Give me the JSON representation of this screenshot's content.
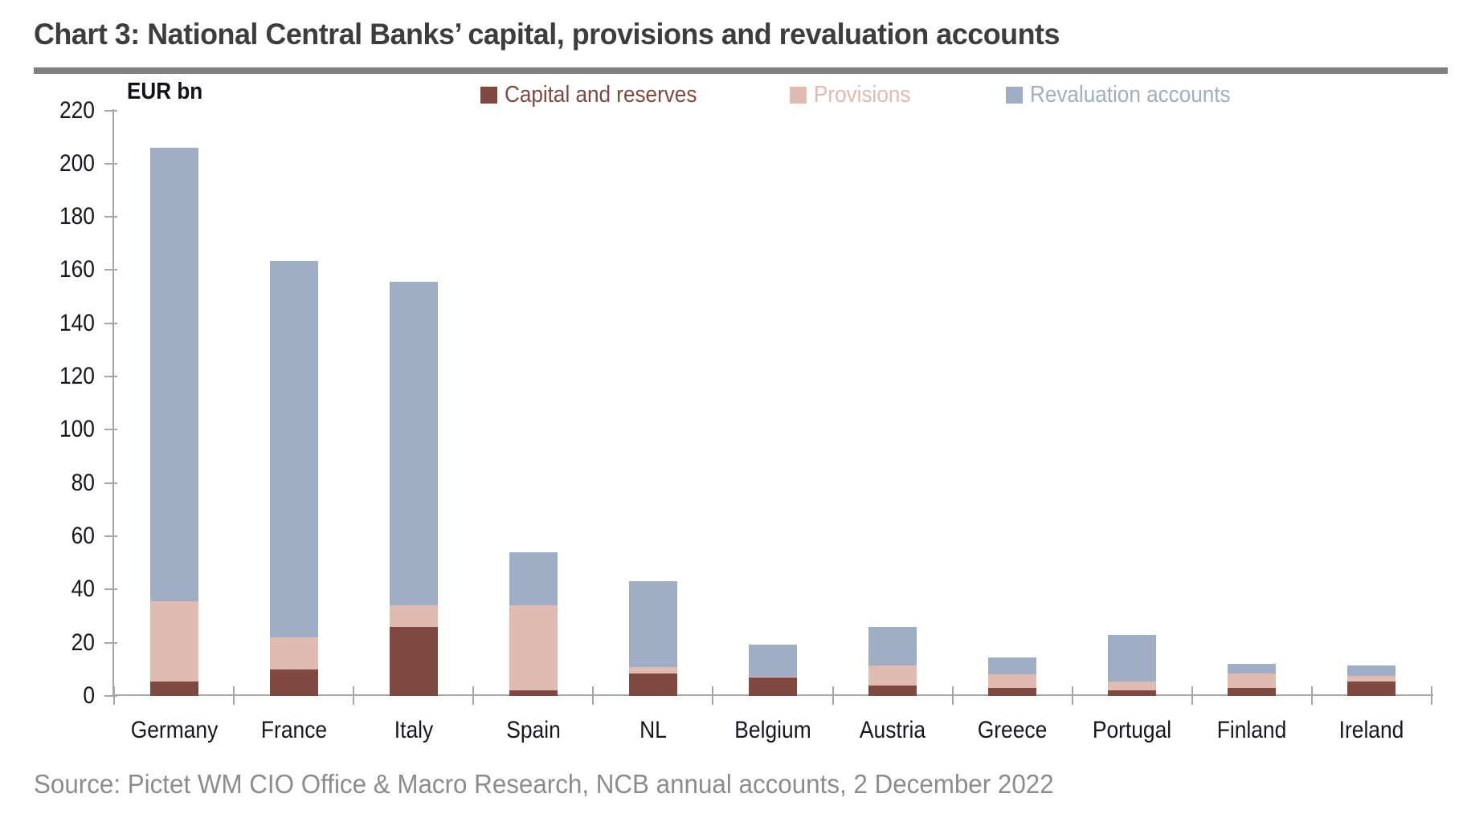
{
  "title": "Chart 3: National Central Banks’ capital, provisions and revaluation accounts",
  "unit_label": "EUR bn",
  "source": "Source: Pictet WM CIO Office & Macro Research, NCB annual accounts, 2 December 2022",
  "colors": {
    "title_text": "#3d3d3d",
    "title_rule": "#7f7f7f",
    "axis": "#a6a6a6",
    "tick_label_text": "#17171f",
    "source_text": "#8c8c8c",
    "capital_and_reserves": "#7f4942",
    "provisions": "#dfbbb1",
    "revaluation_accounts": "#9faec4"
  },
  "chart_data": {
    "type": "bar",
    "stacked": true,
    "title": "Chart 3: National Central Banks’ capital, provisions and revaluation accounts",
    "ylabel": "EUR bn",
    "xlabel": "",
    "ylim": [
      0,
      220
    ],
    "ytick_step": 20,
    "yticks": [
      0,
      20,
      40,
      60,
      80,
      100,
      120,
      140,
      160,
      180,
      200,
      220
    ],
    "grid": false,
    "legend_position": "top",
    "categories": [
      "Germany",
      "France",
      "Italy",
      "Spain",
      "NL",
      "Belgium",
      "Austria",
      "Greece",
      "Portugal",
      "Finland",
      "Ireland"
    ],
    "series": [
      {
        "name": "Capital and reserves",
        "color": "#7f4942",
        "values": [
          5.5,
          10,
          26,
          2,
          8.5,
          7,
          4,
          3,
          2,
          3,
          5.5
        ]
      },
      {
        "name": "Provisions",
        "color": "#dfbbb1",
        "values": [
          30,
          12,
          8,
          32,
          2.5,
          0.3,
          7.5,
          5,
          3.5,
          5.5,
          2
        ]
      },
      {
        "name": "Revaluation accounts",
        "color": "#9faec4",
        "values": [
          170.5,
          141.5,
          121.5,
          20,
          32,
          12,
          14.5,
          6.5,
          17.5,
          3.5,
          4
        ]
      }
    ],
    "totals": [
      206,
      163.5,
      155.5,
      54,
      43,
      19.3,
      26,
      14.5,
      23,
      12,
      11.5
    ]
  }
}
